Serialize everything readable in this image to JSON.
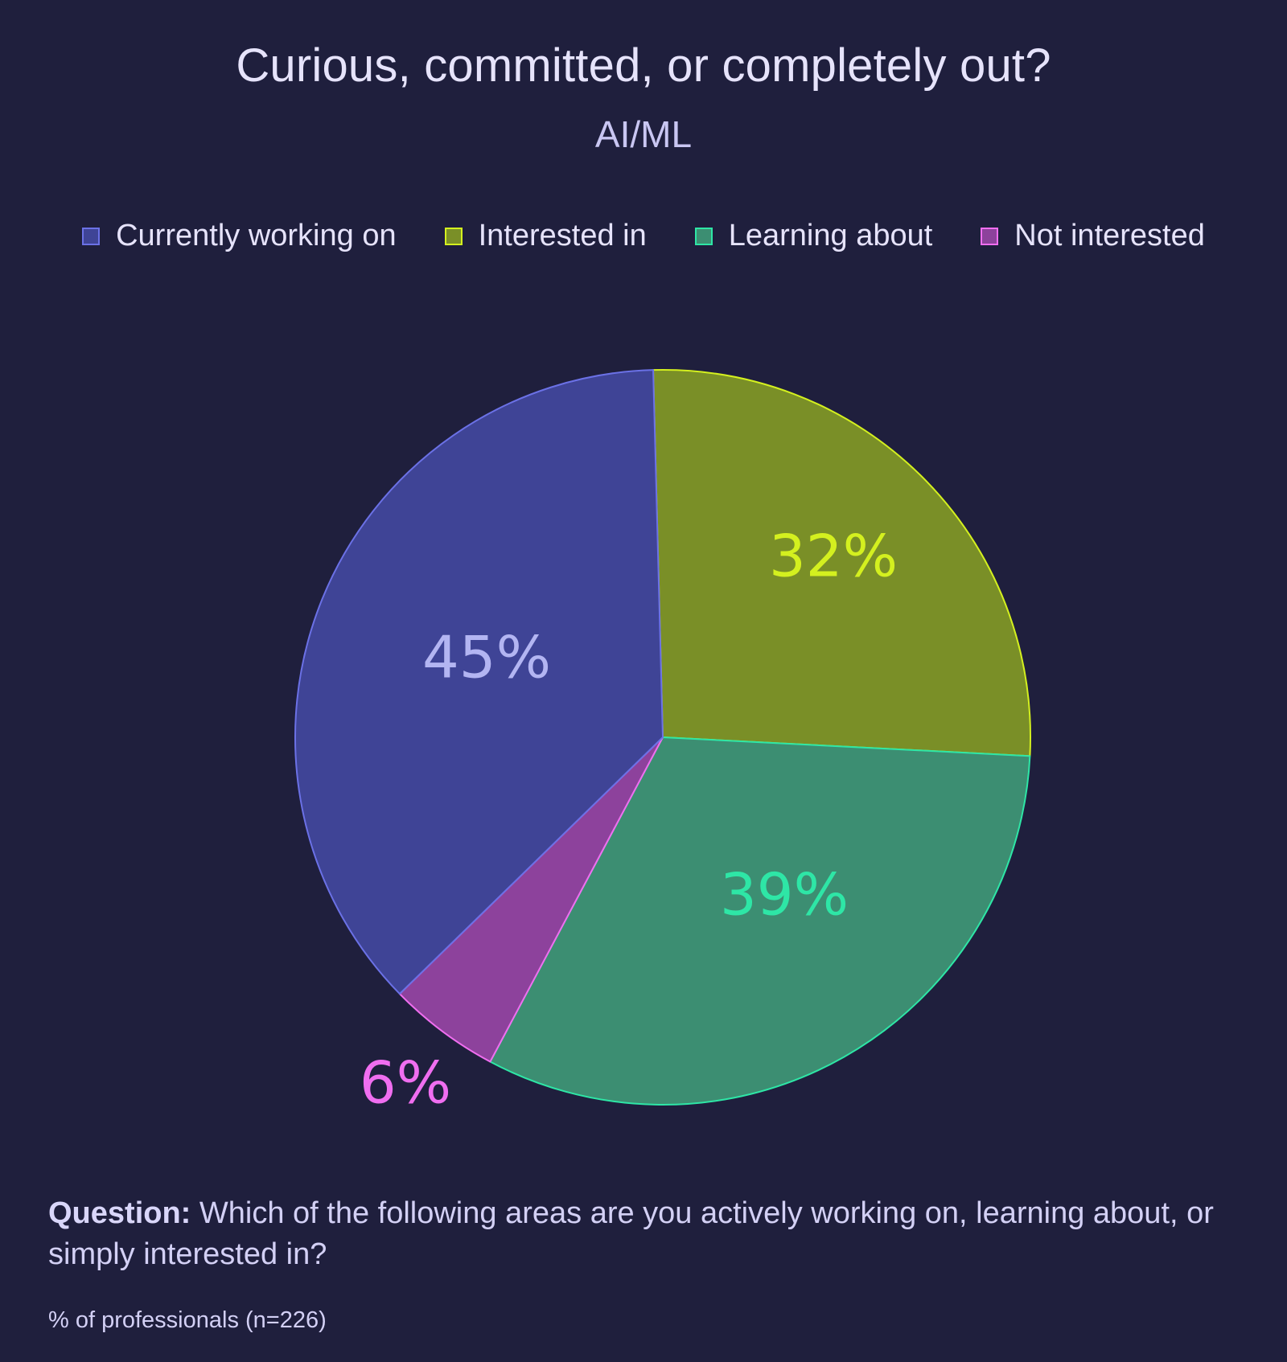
{
  "title": "Curious, committed, or completely out?",
  "subtitle": "AI/ML",
  "question": {
    "label": "Question:",
    "text": "Which of the following areas are you actively working on, learning about, or simply interested in?"
  },
  "footnote": "% of professionals (n=226)",
  "chart_data": {
    "type": "pie",
    "title": "Curious, committed, or completely out?",
    "subtitle": "AI/ML",
    "legend_position": "top",
    "start_angle_deg": -1.5,
    "slices": [
      {
        "name": "Interested in",
        "value": 32,
        "label": "32%",
        "fill": "#7a8f27",
        "stroke": "#d4f01f",
        "label_color": "#d4f01f"
      },
      {
        "name": "Learning about",
        "value": 39,
        "label": "39%",
        "fill": "#3c8e72",
        "stroke": "#2ee6a6",
        "label_color": "#2ee6a6"
      },
      {
        "name": "Not interested",
        "value": 6,
        "label": "6%",
        "fill": "#8d429c",
        "stroke": "#f06ef0",
        "label_color": "#f06ef0"
      },
      {
        "name": "Currently working on",
        "value": 45,
        "label": "45%",
        "fill": "#3f4496",
        "stroke": "#6b71e6",
        "label_color": "#b3b5f2"
      }
    ],
    "legend_order": [
      "Currently working on",
      "Interested in",
      "Learning about",
      "Not interested"
    ]
  }
}
